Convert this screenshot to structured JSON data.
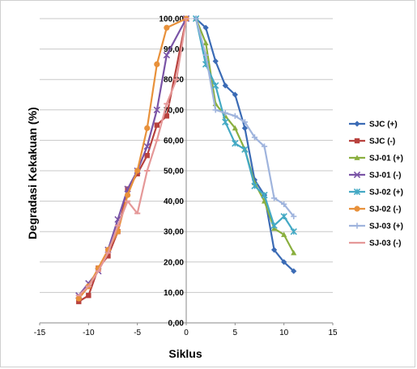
{
  "chart_data": {
    "type": "scatter",
    "xlabel": "Siklus",
    "ylabel": "Degradasi Kekakuan (%)",
    "xlim": [
      -15,
      15
    ],
    "ylim": [
      0,
      100
    ],
    "x_ticks": [
      "-15",
      "-10",
      "-5",
      "0",
      "5",
      "10",
      "15"
    ],
    "y_ticks": [
      "0,00",
      "10,00",
      "20,00",
      "30,00",
      "40,00",
      "50,00",
      "60,00",
      "70,00",
      "80,00",
      "90,00",
      "100,00"
    ],
    "grid": "major-y",
    "legend_position": "right",
    "series": [
      {
        "name": "SJC (+)",
        "color": "#3b6bb5",
        "marker": "diamond",
        "x": [
          1,
          2,
          3,
          4,
          5,
          6,
          7,
          8,
          9,
          10,
          11
        ],
        "y": [
          100,
          97,
          86,
          78,
          75,
          64,
          47,
          42,
          24,
          20,
          17
        ]
      },
      {
        "name": "SJC (-)",
        "color": "#b8413d",
        "marker": "square",
        "x": [
          0,
          -2,
          -3,
          -4,
          -5,
          -6,
          -7,
          -8,
          -9,
          -10,
          -11
        ],
        "y": [
          100,
          68,
          65,
          55,
          49,
          44,
          30,
          22,
          18,
          9,
          7
        ]
      },
      {
        "name": "SJ-01 (+)",
        "color": "#8aaf3f",
        "marker": "triangle",
        "x": [
          1,
          2,
          3,
          4,
          5,
          6,
          7,
          8,
          9,
          10,
          11
        ],
        "y": [
          100,
          92,
          72,
          68,
          64,
          57,
          46,
          40,
          31,
          29,
          23
        ]
      },
      {
        "name": "SJ-01 (-)",
        "color": "#7a54a6",
        "marker": "x",
        "x": [
          0,
          -2,
          -3,
          -4,
          -5,
          -6,
          -7,
          -8,
          -9,
          -10,
          -11
        ],
        "y": [
          100,
          88,
          70,
          58,
          50,
          44,
          34,
          24,
          17,
          13,
          9
        ]
      },
      {
        "name": "SJ-02 (+)",
        "color": "#44a9c4",
        "marker": "star",
        "x": [
          1,
          2,
          3,
          4,
          5,
          6,
          7,
          8,
          9,
          10,
          11
        ],
        "y": [
          100,
          85,
          78,
          66,
          59,
          57,
          45,
          42,
          32,
          35,
          30
        ]
      },
      {
        "name": "SJ-02 (-)",
        "color": "#e8913b",
        "marker": "circle",
        "x": [
          0,
          -2,
          -3,
          -4,
          -5,
          -6,
          -7,
          -8,
          -9,
          -10,
          -11
        ],
        "y": [
          100,
          97,
          85,
          64,
          50,
          42,
          30,
          24,
          18,
          12,
          8
        ]
      },
      {
        "name": "SJ-03 (+)",
        "color": "#9fb4dd",
        "marker": "plus",
        "x": [
          1,
          2,
          3,
          4,
          5,
          6,
          7,
          8,
          9,
          10,
          11
        ],
        "y": [
          100,
          88,
          70,
          69,
          68,
          66,
          61,
          58,
          41,
          39,
          35
        ]
      },
      {
        "name": "SJ-03 (-)",
        "color": "#e59898",
        "marker": "dash",
        "x": [
          0,
          -1,
          -2,
          -3,
          -4,
          -5,
          -6,
          -7,
          -8,
          -9,
          -10,
          -11
        ],
        "y": [
          100,
          80,
          72,
          60,
          50,
          36,
          40,
          32,
          23,
          17,
          12,
          9
        ]
      }
    ]
  }
}
